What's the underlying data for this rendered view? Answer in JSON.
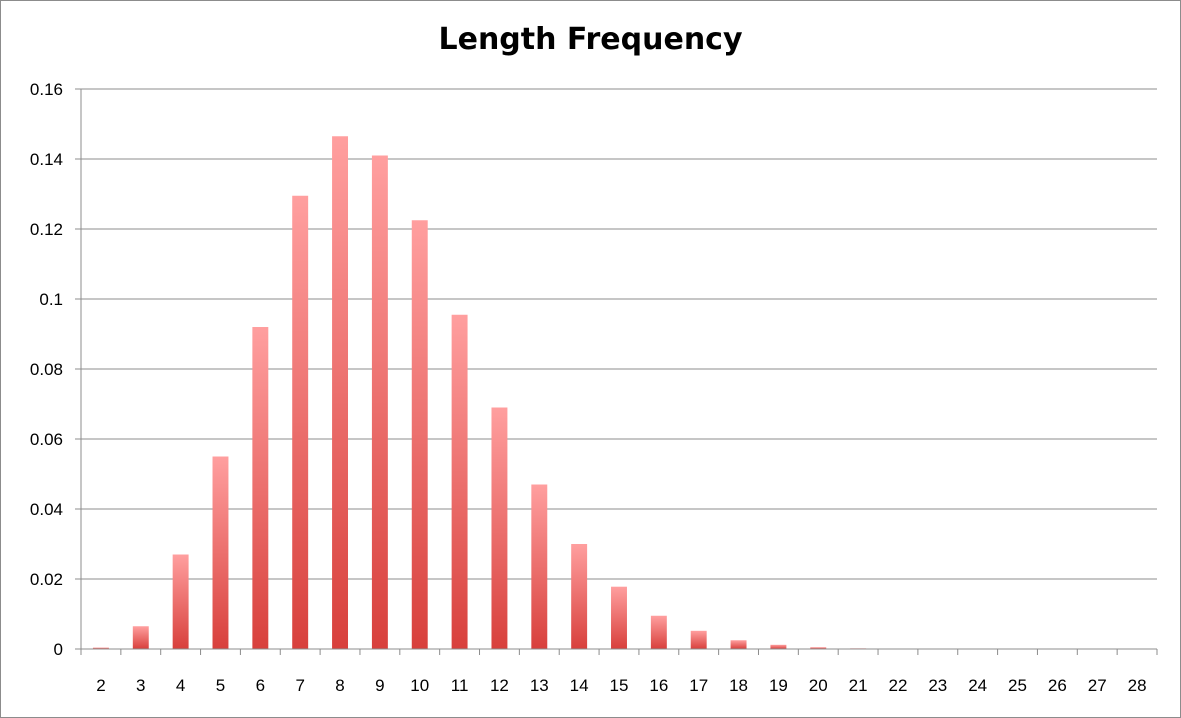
{
  "chart_data": {
    "type": "bar",
    "title": "Length Frequency",
    "xlabel": "",
    "ylabel": "",
    "categories": [
      "2",
      "3",
      "4",
      "5",
      "6",
      "7",
      "8",
      "9",
      "10",
      "11",
      "12",
      "13",
      "14",
      "15",
      "16",
      "17",
      "18",
      "19",
      "20",
      "21",
      "22",
      "23",
      "24",
      "25",
      "26",
      "27",
      "28"
    ],
    "values": [
      0.0004,
      0.0065,
      0.027,
      0.055,
      0.092,
      0.1295,
      0.1465,
      0.141,
      0.1225,
      0.0955,
      0.069,
      0.047,
      0.03,
      0.0178,
      0.0095,
      0.0052,
      0.0025,
      0.0012,
      0.0005,
      0.0002,
      0.0001,
      0,
      0,
      0,
      0,
      0,
      0
    ],
    "ylim": [
      0,
      0.16
    ],
    "yticks": [
      "0",
      "0.02",
      "0.04",
      "0.06",
      "0.08",
      "0.1",
      "0.12",
      "0.14",
      "0.16"
    ],
    "ytick_values": [
      0,
      0.02,
      0.04,
      0.06,
      0.08,
      0.1,
      0.12,
      0.14,
      0.16
    ],
    "grid": true,
    "legend": "none",
    "colors": {
      "bar_top": "#ff9f9f",
      "bar_bottom": "#d8403c",
      "grid": "#8c8c8c",
      "axis": "#8c8c8c"
    }
  }
}
